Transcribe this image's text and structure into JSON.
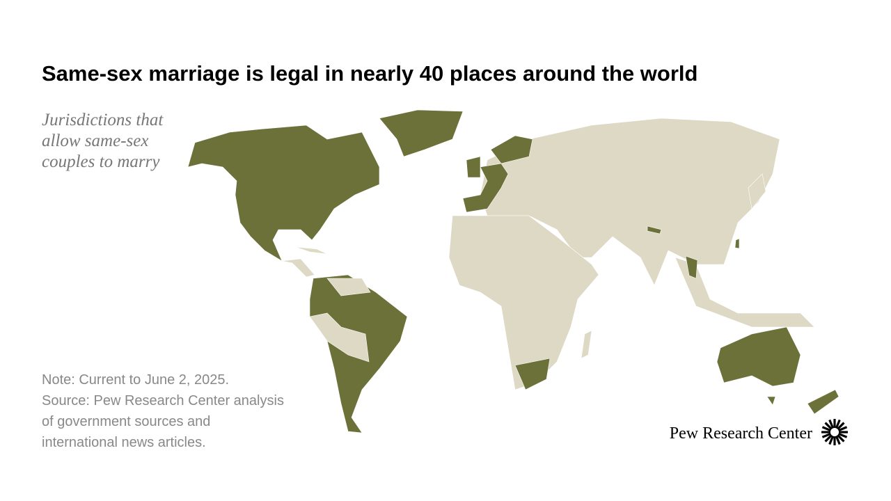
{
  "header": {
    "title": "Same-sex marriage is legal in nearly 40 places around the world"
  },
  "legend": {
    "lines": [
      "Jurisdictions that",
      "allow same-sex",
      "couples to marry"
    ]
  },
  "note": {
    "lines": [
      "Note: Current to June 2, 2025.",
      "Source: Pew Research Center analysis",
      "of government sources and",
      "international news articles."
    ]
  },
  "logo": {
    "text": "Pew Research Center"
  }
}
